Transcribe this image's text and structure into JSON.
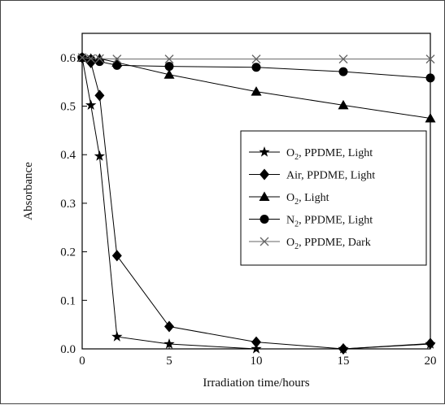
{
  "chart_data": {
    "type": "line",
    "xlabel": "Irradiation time/hours",
    "ylabel": "Absorbance",
    "xlim": [
      0,
      20
    ],
    "ylim": [
      0,
      0.65
    ],
    "x_ticks": [
      0,
      5,
      10,
      15,
      20
    ],
    "y_ticks": [
      0.0,
      0.1,
      0.2,
      0.3,
      0.4,
      0.5,
      0.6
    ],
    "x_tick_labels": [
      "0",
      "5",
      "10",
      "15",
      "20"
    ],
    "y_tick_labels": [
      "0.0",
      "0.1",
      "0.2",
      "0.3",
      "0.4",
      "0.5",
      "0.6"
    ],
    "grid": false,
    "legend_position": "center-right",
    "series": [
      {
        "name": "O2, PPDME, Light",
        "legend": {
          "main": "O",
          "sub": "2",
          "rest": ", PPDME, Light"
        },
        "marker": "star",
        "color": "#000000",
        "x": [
          0,
          0.5,
          1,
          2,
          5,
          10,
          15,
          20
        ],
        "y": [
          0.6,
          0.502,
          0.397,
          0.025,
          0.01,
          0.0,
          0.0,
          0.01
        ]
      },
      {
        "name": "Air, PPDME, Light",
        "legend": {
          "main": "Air, PPDME, Light",
          "sub": "",
          "rest": ""
        },
        "marker": "diamond",
        "color": "#000000",
        "x": [
          0,
          0.5,
          1,
          2,
          5,
          10,
          15,
          20
        ],
        "y": [
          0.6,
          0.59,
          0.522,
          0.192,
          0.046,
          0.014,
          0.0,
          0.011
        ]
      },
      {
        "name": "O2, Light",
        "legend": {
          "main": "O",
          "sub": "2",
          "rest": ", Light"
        },
        "marker": "triangle",
        "color": "#000000",
        "x": [
          0,
          0.5,
          1,
          2,
          5,
          10,
          15,
          20
        ],
        "y": [
          0.6,
          0.598,
          0.598,
          0.59,
          0.565,
          0.53,
          0.502,
          0.475
        ]
      },
      {
        "name": "N2, PPDME, Light",
        "legend": {
          "main": "N",
          "sub": "2",
          "rest": ", PPDME, Light"
        },
        "marker": "circle",
        "color": "#000000",
        "x": [
          0,
          0.5,
          1,
          2,
          5,
          10,
          15,
          20
        ],
        "y": [
          0.6,
          0.596,
          0.592,
          0.584,
          0.582,
          0.58,
          0.571,
          0.558
        ]
      },
      {
        "name": "O2, PPDME, Dark",
        "legend": {
          "main": "O",
          "sub": "2",
          "rest": ", PPDME, Dark"
        },
        "marker": "x",
        "color": "#666666",
        "x": [
          0,
          0.5,
          1,
          2,
          5,
          10,
          15,
          20
        ],
        "y": [
          0.6,
          0.598,
          0.598,
          0.597,
          0.597,
          0.597,
          0.597,
          0.597
        ]
      }
    ]
  }
}
